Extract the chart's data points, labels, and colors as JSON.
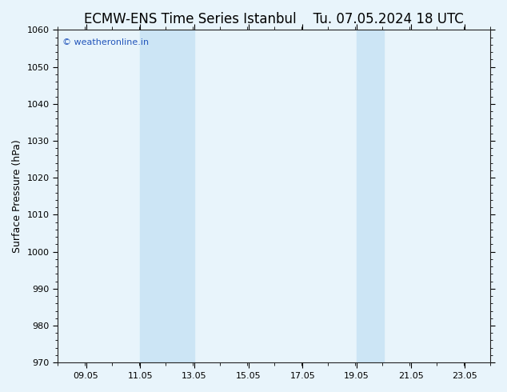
{
  "title_left": "ECMW-ENS Time Series Istanbul",
  "title_right": "Tu. 07.05.2024 18 UTC",
  "ylabel": "Surface Pressure (hPa)",
  "xlim": [
    8.0,
    24.0
  ],
  "ylim": [
    970,
    1060
  ],
  "yticks": [
    970,
    980,
    990,
    1000,
    1010,
    1020,
    1030,
    1040,
    1050,
    1060
  ],
  "xtick_positions": [
    9.05,
    11.05,
    13.05,
    15.05,
    17.05,
    19.05,
    21.05,
    23.05
  ],
  "xtick_labels": [
    "09.05",
    "11.05",
    "13.05",
    "15.05",
    "17.05",
    "19.05",
    "21.05",
    "23.05"
  ],
  "shaded_bands": [
    {
      "xmin": 11.05,
      "xmax": 13.05
    },
    {
      "xmin": 19.05,
      "xmax": 20.05
    }
  ],
  "band_color": "#cce5f5",
  "background_color": "#e8f4fb",
  "plot_bg_color": "#e8f4fb",
  "watermark_text": "© weatheronline.in",
  "watermark_color": "#2255bb",
  "title_fontsize": 12,
  "axis_label_fontsize": 9,
  "tick_fontsize": 8,
  "watermark_fontsize": 8,
  "spine_color": "#222222",
  "title_gap": "     "
}
